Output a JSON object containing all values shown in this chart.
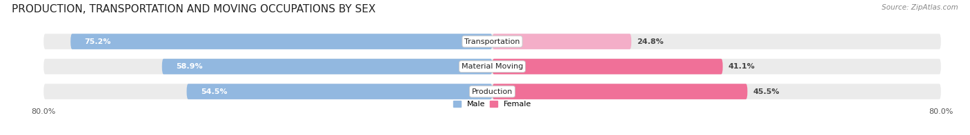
{
  "title": "PRODUCTION, TRANSPORTATION AND MOVING OCCUPATIONS BY SEX",
  "source": "Source: ZipAtlas.com",
  "categories": [
    "Transportation",
    "Material Moving",
    "Production"
  ],
  "male_values": [
    75.2,
    58.9,
    54.5
  ],
  "female_values": [
    24.8,
    41.1,
    45.5
  ],
  "male_color": "#92b8e0",
  "female_color": "#f07098",
  "female_color_light": "#f4aec8",
  "male_label": "Male",
  "female_label": "Female",
  "axis_limit": 80.0,
  "background_color": "#ffffff",
  "row_bg_color": "#ebebeb",
  "title_fontsize": 11,
  "label_fontsize": 8,
  "bar_height": 0.62
}
